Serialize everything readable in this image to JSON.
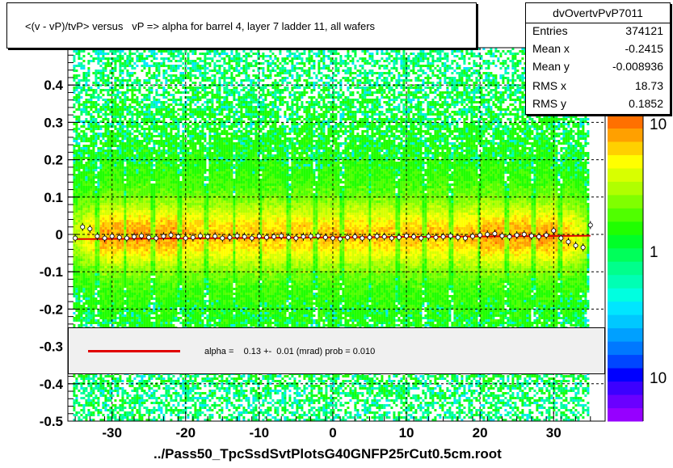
{
  "title": "<(v - vP)/tvP> versus   vP => alpha for barrel 4, layer 7 ladder 11, all wafers",
  "stats": {
    "name": "dvOvertvPvP7011",
    "rows": [
      {
        "label": "Entries",
        "value": "374121"
      },
      {
        "label": "Mean x",
        "value": "-0.2415"
      },
      {
        "label": "Mean y",
        "value": "-0.008936"
      },
      {
        "label": "RMS x",
        "value": "18.73"
      },
      {
        "label": "RMS y",
        "value": "0.1852"
      }
    ]
  },
  "fit_legend": {
    "text": "alpha =    0.13 +-  0.01 (mrad) prob = 0.010",
    "color": "#e00000"
  },
  "chart_data": {
    "type": "heatmap",
    "title": "<(v - vP)/tvP> versus   vP => alpha for barrel 4, layer 7 ladder 11, all wafers",
    "xlabel": "../Pass50_TpcSsdSvtPlotsG40GNFP25rCut0.5cm.root",
    "ylabel": "",
    "xlim": [
      -36,
      37
    ],
    "ylim": [
      -0.5,
      0.5
    ],
    "x_ticks": [
      -30,
      -20,
      -10,
      0,
      10,
      20,
      30
    ],
    "x_tick_labels": [
      "-30",
      "-20",
      "-10",
      "0",
      "10",
      "20",
      "30"
    ],
    "y_ticks": [
      -0.5,
      -0.4,
      -0.3,
      -0.2,
      -0.1,
      0,
      0.1,
      0.2,
      0.3,
      0.4
    ],
    "y_tick_labels": [
      "-0.5",
      "-0.4",
      "-0.3",
      "-0.2",
      "-0.1",
      "0",
      "0.1",
      "0.2",
      "0.3",
      "0.4"
    ],
    "grid": true,
    "colorbar": {
      "labels": [
        "10",
        "1",
        "10"
      ],
      "colors": [
        "#9600ff",
        "#6a00ff",
        "#3c00ff",
        "#0000ff",
        "#0046ff",
        "#0078ff",
        "#00a0ff",
        "#00c8ff",
        "#00e6ff",
        "#00ffe0",
        "#00ffb4",
        "#00ff8c",
        "#00ff5a",
        "#00ff28",
        "#20ff00",
        "#50ff00",
        "#80ff00",
        "#b0ff00",
        "#d8ff00",
        "#ffff00",
        "#ffd000",
        "#ffa000",
        "#ff7000"
      ]
    },
    "profile": {
      "x": [
        -35,
        -34,
        -33,
        -32,
        -31,
        -30,
        -29,
        -28,
        -27,
        -26,
        -25,
        -24,
        -23,
        -22,
        -21,
        -20,
        -19,
        -18,
        -17,
        -16,
        -15,
        -14,
        -13,
        -12,
        -11,
        -10,
        -9,
        -8,
        -7,
        -6,
        -5,
        -4,
        -3,
        -2,
        -1,
        0,
        1,
        2,
        3,
        4,
        5,
        6,
        7,
        8,
        9,
        10,
        11,
        12,
        13,
        14,
        15,
        16,
        17,
        18,
        19,
        20,
        21,
        22,
        23,
        24,
        25,
        26,
        27,
        28,
        29,
        30,
        31,
        32,
        33,
        34,
        35
      ],
      "y": [
        -0.01,
        0.02,
        0.015,
        -0.005,
        -0.01,
        -0.005,
        -0.008,
        -0.01,
        -0.006,
        -0.004,
        -0.008,
        -0.01,
        -0.005,
        -0.002,
        -0.006,
        -0.01,
        -0.008,
        -0.004,
        -0.006,
        -0.005,
        -0.01,
        -0.008,
        -0.004,
        -0.006,
        -0.01,
        -0.005,
        -0.008,
        -0.006,
        -0.004,
        -0.008,
        -0.01,
        -0.006,
        -0.005,
        -0.004,
        -0.008,
        -0.01,
        -0.012,
        -0.008,
        -0.006,
        -0.01,
        -0.008,
        -0.005,
        -0.006,
        -0.01,
        -0.008,
        -0.004,
        -0.006,
        -0.01,
        -0.005,
        -0.008,
        -0.006,
        -0.004,
        -0.008,
        -0.01,
        -0.005,
        -0.002,
        0.0,
        0.002,
        -0.004,
        -0.006,
        -0.002,
        0.0,
        -0.004,
        -0.006,
        -0.002,
        0.01,
        -0.01,
        -0.02,
        -0.03,
        -0.035,
        0.025
      ],
      "fit_intercept": -0.008,
      "fit_slope": 0.00013
    }
  }
}
